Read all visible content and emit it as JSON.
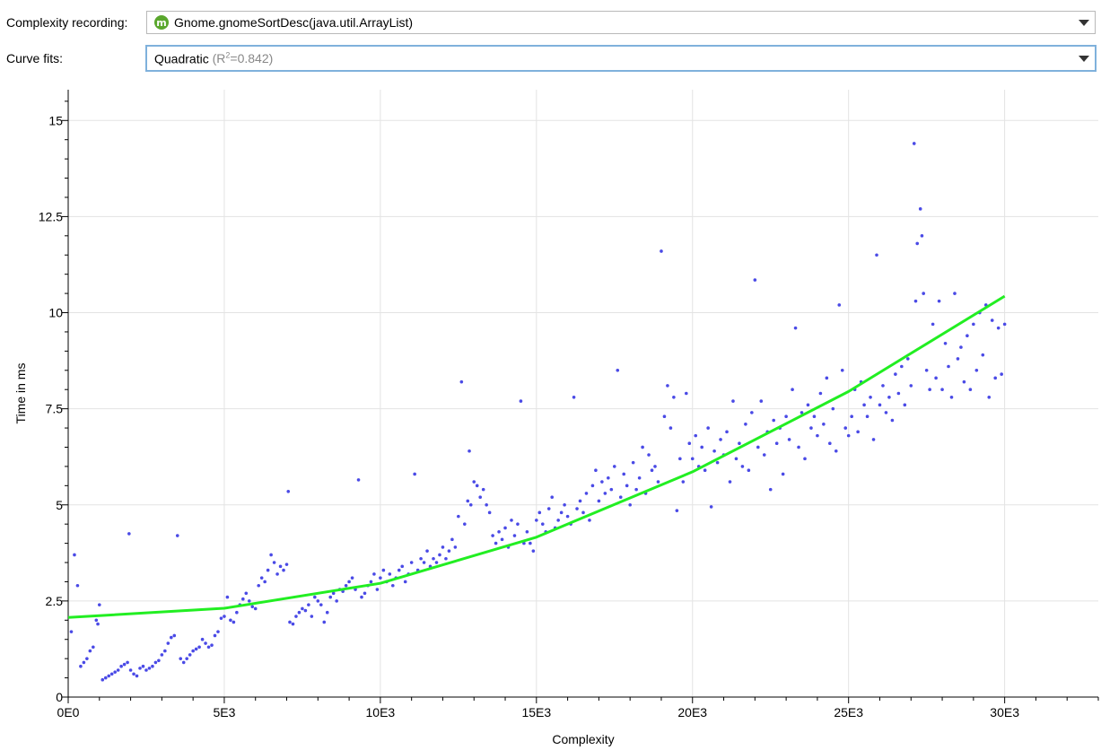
{
  "controls": {
    "complexity_label": "Complexity recording:",
    "complexity_icon_letter": "m",
    "complexity_value": "Gnome.gnomeSortDesc(java.util.ArrayList)",
    "curve_label": "Curve fits:",
    "curve_value": "Quadratic",
    "curve_r2_prefix": "(R",
    "curve_r2_sup": "2",
    "curve_r2_suffix": "=0.842)"
  },
  "colors": {
    "points": "#4a4ae6",
    "fit": "#22ee22",
    "grid": "#e3e3e3",
    "icon": "#5aa72d"
  },
  "chart_data": {
    "type": "scatter",
    "xlabel": "Complexity",
    "ylabel": "Time in ms",
    "xlim": [
      0,
      33000
    ],
    "ylim": [
      0,
      15.8
    ],
    "x_ticks": [
      0,
      5000,
      10000,
      15000,
      20000,
      25000,
      30000
    ],
    "x_tick_labels": [
      "0E0",
      "5E3",
      "10E3",
      "15E3",
      "20E3",
      "25E3",
      "30E3"
    ],
    "y_ticks": [
      0,
      2.5,
      5,
      7.5,
      10,
      12.5,
      15
    ],
    "y_tick_labels": [
      "0",
      "2.5",
      "5",
      "7.5",
      "10",
      "12.5",
      "15"
    ],
    "grid": true,
    "fit": {
      "model": "quadratic",
      "r2": 0.842,
      "x_range": [
        0,
        30000
      ],
      "points": [
        [
          0,
          2.07
        ],
        [
          5000,
          2.31
        ],
        [
          10000,
          2.96
        ],
        [
          15000,
          4.16
        ],
        [
          20000,
          5.86
        ],
        [
          25000,
          7.95
        ],
        [
          30000,
          10.43
        ]
      ]
    },
    "series": [
      {
        "points": [
          [
            100,
            1.7
          ],
          [
            200,
            3.7
          ],
          [
            300,
            2.9
          ],
          [
            400,
            0.8
          ],
          [
            500,
            0.9
          ],
          [
            600,
            1.0
          ],
          [
            700,
            1.2
          ],
          [
            800,
            1.3
          ],
          [
            900,
            2.0
          ],
          [
            950,
            1.9
          ],
          [
            1000,
            2.4
          ],
          [
            1100,
            0.45
          ],
          [
            1200,
            0.5
          ],
          [
            1300,
            0.55
          ],
          [
            1400,
            0.6
          ],
          [
            1500,
            0.65
          ],
          [
            1600,
            0.7
          ],
          [
            1700,
            0.8
          ],
          [
            1800,
            0.85
          ],
          [
            1900,
            0.9
          ],
          [
            1950,
            4.25
          ],
          [
            2000,
            0.7
          ],
          [
            2100,
            0.6
          ],
          [
            2200,
            0.55
          ],
          [
            2300,
            0.75
          ],
          [
            2400,
            0.8
          ],
          [
            2500,
            0.7
          ],
          [
            2600,
            0.75
          ],
          [
            2700,
            0.8
          ],
          [
            2800,
            0.9
          ],
          [
            2900,
            0.95
          ],
          [
            3000,
            1.1
          ],
          [
            3100,
            1.2
          ],
          [
            3200,
            1.4
          ],
          [
            3300,
            1.55
          ],
          [
            3400,
            1.6
          ],
          [
            3500,
            4.2
          ],
          [
            3600,
            1.0
          ],
          [
            3700,
            0.9
          ],
          [
            3800,
            1.0
          ],
          [
            3900,
            1.1
          ],
          [
            4000,
            1.2
          ],
          [
            4100,
            1.25
          ],
          [
            4200,
            1.3
          ],
          [
            4300,
            1.5
          ],
          [
            4400,
            1.4
          ],
          [
            4500,
            1.3
          ],
          [
            4600,
            1.35
          ],
          [
            4700,
            1.6
          ],
          [
            4800,
            1.7
          ],
          [
            4900,
            2.05
          ],
          [
            5000,
            2.1
          ],
          [
            5100,
            2.6
          ],
          [
            5200,
            2.0
          ],
          [
            5300,
            1.95
          ],
          [
            5400,
            2.2
          ],
          [
            5500,
            2.4
          ],
          [
            5600,
            2.55
          ],
          [
            5700,
            2.7
          ],
          [
            5800,
            2.5
          ],
          [
            5900,
            2.35
          ],
          [
            6000,
            2.3
          ],
          [
            6100,
            2.9
          ],
          [
            6200,
            3.1
          ],
          [
            6300,
            3.0
          ],
          [
            6400,
            3.3
          ],
          [
            6500,
            3.7
          ],
          [
            6600,
            3.5
          ],
          [
            6700,
            3.2
          ],
          [
            6800,
            3.4
          ],
          [
            6900,
            3.3
          ],
          [
            7000,
            3.45
          ],
          [
            7050,
            5.35
          ],
          [
            7100,
            1.95
          ],
          [
            7200,
            1.9
          ],
          [
            7300,
            2.1
          ],
          [
            7400,
            2.2
          ],
          [
            7500,
            2.3
          ],
          [
            7600,
            2.25
          ],
          [
            7700,
            2.4
          ],
          [
            7800,
            2.1
          ],
          [
            7900,
            2.6
          ],
          [
            8000,
            2.5
          ],
          [
            8100,
            2.4
          ],
          [
            8200,
            1.95
          ],
          [
            8300,
            2.2
          ],
          [
            8400,
            2.6
          ],
          [
            8500,
            2.7
          ],
          [
            8600,
            2.5
          ],
          [
            8700,
            2.8
          ],
          [
            8800,
            2.75
          ],
          [
            8900,
            2.9
          ],
          [
            9000,
            3.0
          ],
          [
            9100,
            3.1
          ],
          [
            9200,
            2.8
          ],
          [
            9300,
            5.65
          ],
          [
            9400,
            2.6
          ],
          [
            9500,
            2.7
          ],
          [
            9600,
            2.9
          ],
          [
            9700,
            3.0
          ],
          [
            9800,
            3.2
          ],
          [
            9900,
            2.8
          ],
          [
            10000,
            3.1
          ],
          [
            10100,
            3.3
          ],
          [
            10200,
            3.0
          ],
          [
            10300,
            3.2
          ],
          [
            10400,
            2.9
          ],
          [
            10500,
            3.1
          ],
          [
            10600,
            3.3
          ],
          [
            10700,
            3.4
          ],
          [
            10800,
            3.0
          ],
          [
            10900,
            3.2
          ],
          [
            11000,
            3.5
          ],
          [
            11100,
            5.8
          ],
          [
            11200,
            3.3
          ],
          [
            11300,
            3.6
          ],
          [
            11400,
            3.5
          ],
          [
            11500,
            3.8
          ],
          [
            11600,
            3.4
          ],
          [
            11700,
            3.6
          ],
          [
            11800,
            3.5
          ],
          [
            11900,
            3.7
          ],
          [
            12000,
            3.9
          ],
          [
            12100,
            3.6
          ],
          [
            12200,
            3.8
          ],
          [
            12300,
            4.1
          ],
          [
            12400,
            3.9
          ],
          [
            12500,
            4.7
          ],
          [
            12600,
            8.2
          ],
          [
            12700,
            4.5
          ],
          [
            12800,
            5.1
          ],
          [
            12850,
            6.4
          ],
          [
            12900,
            5.0
          ],
          [
            13000,
            5.6
          ],
          [
            13100,
            5.5
          ],
          [
            13200,
            5.2
          ],
          [
            13300,
            5.4
          ],
          [
            13400,
            5.0
          ],
          [
            13500,
            4.8
          ],
          [
            13600,
            4.2
          ],
          [
            13700,
            4.0
          ],
          [
            13800,
            4.3
          ],
          [
            13900,
            4.1
          ],
          [
            14000,
            4.4
          ],
          [
            14100,
            3.9
          ],
          [
            14200,
            4.6
          ],
          [
            14300,
            4.2
          ],
          [
            14400,
            4.5
          ],
          [
            14500,
            7.7
          ],
          [
            14600,
            4.0
          ],
          [
            14700,
            4.3
          ],
          [
            14800,
            4.0
          ],
          [
            14900,
            3.8
          ],
          [
            15000,
            4.6
          ],
          [
            15100,
            4.8
          ],
          [
            15200,
            4.5
          ],
          [
            15300,
            4.3
          ],
          [
            15400,
            4.9
          ],
          [
            15500,
            5.2
          ],
          [
            15600,
            4.4
          ],
          [
            15700,
            4.6
          ],
          [
            15800,
            4.8
          ],
          [
            15900,
            5.0
          ],
          [
            16000,
            4.7
          ],
          [
            16100,
            4.5
          ],
          [
            16200,
            7.8
          ],
          [
            16300,
            4.9
          ],
          [
            16400,
            5.1
          ],
          [
            16500,
            4.8
          ],
          [
            16600,
            5.3
          ],
          [
            16700,
            4.6
          ],
          [
            16800,
            5.5
          ],
          [
            16900,
            5.9
          ],
          [
            17000,
            5.1
          ],
          [
            17100,
            5.6
          ],
          [
            17200,
            5.3
          ],
          [
            17300,
            5.7
          ],
          [
            17400,
            5.4
          ],
          [
            17500,
            6.0
          ],
          [
            17600,
            8.5
          ],
          [
            17700,
            5.2
          ],
          [
            17800,
            5.8
          ],
          [
            17900,
            5.5
          ],
          [
            18000,
            5.0
          ],
          [
            18100,
            6.1
          ],
          [
            18200,
            5.4
          ],
          [
            18300,
            5.7
          ],
          [
            18400,
            6.5
          ],
          [
            18500,
            5.3
          ],
          [
            18600,
            6.3
          ],
          [
            18700,
            5.9
          ],
          [
            18800,
            6.0
          ],
          [
            18900,
            5.6
          ],
          [
            19000,
            11.6
          ],
          [
            19100,
            7.3
          ],
          [
            19200,
            8.1
          ],
          [
            19300,
            7.0
          ],
          [
            19400,
            7.8
          ],
          [
            19500,
            4.85
          ],
          [
            19600,
            6.2
          ],
          [
            19700,
            5.6
          ],
          [
            19800,
            7.9
          ],
          [
            19900,
            6.6
          ],
          [
            20000,
            6.2
          ],
          [
            20100,
            6.8
          ],
          [
            20200,
            6.0
          ],
          [
            20300,
            6.5
          ],
          [
            20400,
            5.9
          ],
          [
            20500,
            7.0
          ],
          [
            20600,
            4.95
          ],
          [
            20700,
            6.4
          ],
          [
            20800,
            6.1
          ],
          [
            20900,
            6.7
          ],
          [
            21000,
            6.3
          ],
          [
            21100,
            6.9
          ],
          [
            21200,
            5.6
          ],
          [
            21300,
            7.7
          ],
          [
            21400,
            6.2
          ],
          [
            21500,
            6.6
          ],
          [
            21600,
            6.0
          ],
          [
            21700,
            7.1
          ],
          [
            21800,
            5.9
          ],
          [
            21900,
            7.4
          ],
          [
            22000,
            10.85
          ],
          [
            22100,
            6.5
          ],
          [
            22200,
            7.7
          ],
          [
            22300,
            6.3
          ],
          [
            22400,
            6.9
          ],
          [
            22500,
            5.4
          ],
          [
            22600,
            7.2
          ],
          [
            22700,
            6.6
          ],
          [
            22800,
            7.0
          ],
          [
            22900,
            5.8
          ],
          [
            23000,
            7.3
          ],
          [
            23100,
            6.7
          ],
          [
            23200,
            8.0
          ],
          [
            23300,
            9.6
          ],
          [
            23400,
            6.5
          ],
          [
            23500,
            7.4
          ],
          [
            23600,
            6.2
          ],
          [
            23700,
            7.6
          ],
          [
            23800,
            7.0
          ],
          [
            23900,
            7.3
          ],
          [
            24000,
            6.8
          ],
          [
            24100,
            7.9
          ],
          [
            24200,
            7.1
          ],
          [
            24300,
            8.3
          ],
          [
            24400,
            6.6
          ],
          [
            24500,
            7.5
          ],
          [
            24600,
            6.4
          ],
          [
            24700,
            10.2
          ],
          [
            24800,
            8.5
          ],
          [
            24900,
            7.0
          ],
          [
            25000,
            6.8
          ],
          [
            25100,
            7.3
          ],
          [
            25200,
            8.0
          ],
          [
            25300,
            6.9
          ],
          [
            25400,
            8.2
          ],
          [
            25500,
            7.6
          ],
          [
            25600,
            7.3
          ],
          [
            25700,
            7.8
          ],
          [
            25800,
            6.7
          ],
          [
            25900,
            11.5
          ],
          [
            26000,
            7.6
          ],
          [
            26100,
            8.1
          ],
          [
            26200,
            7.4
          ],
          [
            26300,
            7.8
          ],
          [
            26400,
            7.2
          ],
          [
            26500,
            8.4
          ],
          [
            26600,
            7.9
          ],
          [
            26700,
            8.6
          ],
          [
            26800,
            7.6
          ],
          [
            26900,
            8.8
          ],
          [
            27000,
            8.1
          ],
          [
            27100,
            14.4
          ],
          [
            27150,
            10.3
          ],
          [
            27200,
            11.8
          ],
          [
            27300,
            12.7
          ],
          [
            27350,
            12.0
          ],
          [
            27400,
            10.5
          ],
          [
            27500,
            8.5
          ],
          [
            27600,
            8.0
          ],
          [
            27700,
            9.7
          ],
          [
            27800,
            8.3
          ],
          [
            27900,
            10.3
          ],
          [
            28000,
            8.0
          ],
          [
            28100,
            9.2
          ],
          [
            28200,
            8.6
          ],
          [
            28300,
            7.8
          ],
          [
            28400,
            10.5
          ],
          [
            28500,
            8.8
          ],
          [
            28600,
            9.1
          ],
          [
            28700,
            8.2
          ],
          [
            28800,
            9.4
          ],
          [
            28900,
            8.0
          ],
          [
            29000,
            9.7
          ],
          [
            29100,
            8.5
          ],
          [
            29200,
            10.0
          ],
          [
            29300,
            8.9
          ],
          [
            29400,
            10.2
          ],
          [
            29500,
            7.8
          ],
          [
            29600,
            9.8
          ],
          [
            29700,
            8.3
          ],
          [
            29800,
            9.6
          ],
          [
            29900,
            8.4
          ],
          [
            30000,
            9.7
          ]
        ]
      }
    ]
  }
}
